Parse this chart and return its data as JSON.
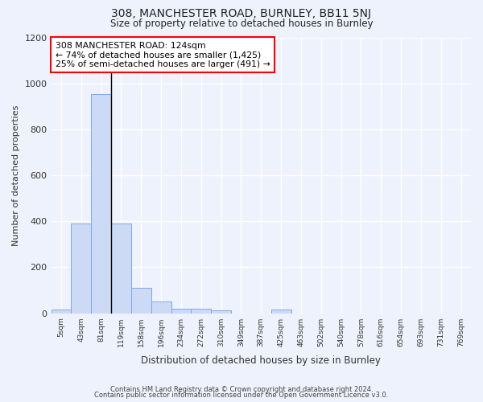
{
  "title": "308, MANCHESTER ROAD, BURNLEY, BB11 5NJ",
  "subtitle": "Size of property relative to detached houses in Burnley",
  "xlabel": "Distribution of detached houses by size in Burnley",
  "ylabel": "Number of detached properties",
  "bar_categories": [
    "5sqm",
    "43sqm",
    "81sqm",
    "119sqm",
    "158sqm",
    "196sqm",
    "234sqm",
    "272sqm",
    "310sqm",
    "349sqm",
    "387sqm",
    "425sqm",
    "463sqm",
    "502sqm",
    "540sqm",
    "578sqm",
    "616sqm",
    "654sqm",
    "693sqm",
    "731sqm",
    "769sqm"
  ],
  "bar_values": [
    15,
    390,
    955,
    390,
    110,
    50,
    20,
    20,
    12,
    0,
    0,
    15,
    0,
    0,
    0,
    0,
    0,
    0,
    0,
    0,
    0
  ],
  "bar_color": "#cddaf5",
  "bar_edge_color": "#7aaae8",
  "ylim": [
    0,
    1200
  ],
  "yticks": [
    0,
    200,
    400,
    600,
    800,
    1000,
    1200
  ],
  "annotation_line1": "308 MANCHESTER ROAD: 124sqm",
  "annotation_line2": "← 74% of detached houses are smaller (1,425)",
  "annotation_line3": "25% of semi-detached houses are larger (491) →",
  "vertical_line_bin": 2.5,
  "bg_color": "#eef2fc",
  "grid_color": "#ffffff",
  "footnote1": "Contains HM Land Registry data © Crown copyright and database right 2024.",
  "footnote2": "Contains public sector information licensed under the Open Government Licence v3.0."
}
